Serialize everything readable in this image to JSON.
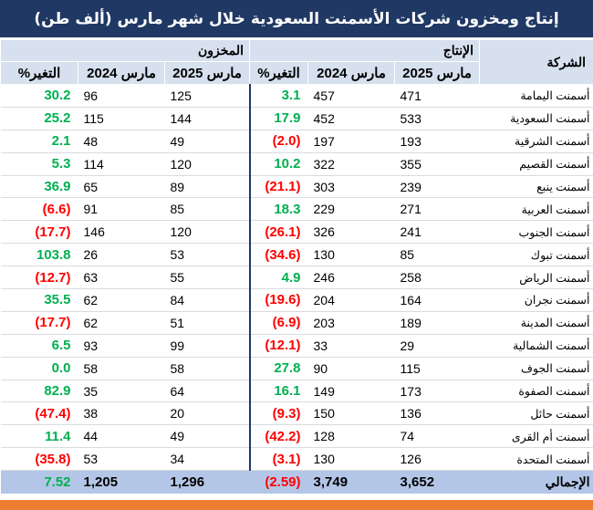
{
  "title": "إنتاج ومخزون شركات الأسمنت السعودية خلال شهر مارس (ألف طن)",
  "headers": {
    "company": "الشركة",
    "production_group": "الإنتاج",
    "inventory_group": "المخزون",
    "mar2025": "مارس 2025",
    "mar2024": "مارس 2024",
    "change": "التغير%"
  },
  "colors": {
    "title_bg": "#1f3864",
    "header_bg": "#d6e0ee",
    "total_bg": "#b4c6e7",
    "positive": "#00b050",
    "negative": "#ff0000",
    "footer": "#ed7d31"
  },
  "rows": [
    {
      "company": "أسمنت اليمامة",
      "prod_2025": "471",
      "prod_2024": "457",
      "prod_change": "3.1",
      "prod_sign": "pos",
      "inv_2025": "125",
      "inv_2024": "96",
      "inv_change": "30.2",
      "inv_sign": "pos"
    },
    {
      "company": "أسمنت السعودية",
      "prod_2025": "533",
      "prod_2024": "452",
      "prod_change": "17.9",
      "prod_sign": "pos",
      "inv_2025": "144",
      "inv_2024": "115",
      "inv_change": "25.2",
      "inv_sign": "pos"
    },
    {
      "company": "أسمنت الشرقية",
      "prod_2025": "193",
      "prod_2024": "197",
      "prod_change": "(2.0)",
      "prod_sign": "neg",
      "inv_2025": "49",
      "inv_2024": "48",
      "inv_change": "2.1",
      "inv_sign": "pos"
    },
    {
      "company": "أسمنت القصيم",
      "prod_2025": "355",
      "prod_2024": "322",
      "prod_change": "10.2",
      "prod_sign": "pos",
      "inv_2025": "120",
      "inv_2024": "114",
      "inv_change": "5.3",
      "inv_sign": "pos"
    },
    {
      "company": "أسمنت ينبع",
      "prod_2025": "239",
      "prod_2024": "303",
      "prod_change": "(21.1)",
      "prod_sign": "neg",
      "inv_2025": "89",
      "inv_2024": "65",
      "inv_change": "36.9",
      "inv_sign": "pos"
    },
    {
      "company": "أسمنت العربية",
      "prod_2025": "271",
      "prod_2024": "229",
      "prod_change": "18.3",
      "prod_sign": "pos",
      "inv_2025": "85",
      "inv_2024": "91",
      "inv_change": "(6.6)",
      "inv_sign": "neg"
    },
    {
      "company": "أسمنت الجنوب",
      "prod_2025": "241",
      "prod_2024": "326",
      "prod_change": "(26.1)",
      "prod_sign": "neg",
      "inv_2025": "120",
      "inv_2024": "146",
      "inv_change": "(17.7)",
      "inv_sign": "neg"
    },
    {
      "company": "أسمنت تبوك",
      "prod_2025": "85",
      "prod_2024": "130",
      "prod_change": "(34.6)",
      "prod_sign": "neg",
      "inv_2025": "53",
      "inv_2024": "26",
      "inv_change": "103.8",
      "inv_sign": "pos"
    },
    {
      "company": "أسمنت الرياض",
      "prod_2025": "258",
      "prod_2024": "246",
      "prod_change": "4.9",
      "prod_sign": "pos",
      "inv_2025": "55",
      "inv_2024": "63",
      "inv_change": "(12.7)",
      "inv_sign": "neg"
    },
    {
      "company": "أسمنت نجران",
      "prod_2025": "164",
      "prod_2024": "204",
      "prod_change": "(19.6)",
      "prod_sign": "neg",
      "inv_2025": "84",
      "inv_2024": "62",
      "inv_change": "35.5",
      "inv_sign": "pos"
    },
    {
      "company": "أسمنت المدينة",
      "prod_2025": "189",
      "prod_2024": "203",
      "prod_change": "(6.9)",
      "prod_sign": "neg",
      "inv_2025": "51",
      "inv_2024": "62",
      "inv_change": "(17.7)",
      "inv_sign": "neg"
    },
    {
      "company": "أسمنت الشمالية",
      "prod_2025": "29",
      "prod_2024": "33",
      "prod_change": "(12.1)",
      "prod_sign": "neg",
      "inv_2025": "99",
      "inv_2024": "93",
      "inv_change": "6.5",
      "inv_sign": "pos"
    },
    {
      "company": "أسمنت الجوف",
      "prod_2025": "115",
      "prod_2024": "90",
      "prod_change": "27.8",
      "prod_sign": "pos",
      "inv_2025": "58",
      "inv_2024": "58",
      "inv_change": "0.0",
      "inv_sign": "pos"
    },
    {
      "company": "أسمنت الصفوة",
      "prod_2025": "173",
      "prod_2024": "149",
      "prod_change": "16.1",
      "prod_sign": "pos",
      "inv_2025": "64",
      "inv_2024": "35",
      "inv_change": "82.9",
      "inv_sign": "pos"
    },
    {
      "company": "أسمنت حائل",
      "prod_2025": "136",
      "prod_2024": "150",
      "prod_change": "(9.3)",
      "prod_sign": "neg",
      "inv_2025": "20",
      "inv_2024": "38",
      "inv_change": "(47.4)",
      "inv_sign": "neg"
    },
    {
      "company": "أسمنت أم القرى",
      "prod_2025": "74",
      "prod_2024": "128",
      "prod_change": "(42.2)",
      "prod_sign": "neg",
      "inv_2025": "49",
      "inv_2024": "44",
      "inv_change": "11.4",
      "inv_sign": "pos"
    },
    {
      "company": "أسمنت المتحدة",
      "prod_2025": "126",
      "prod_2024": "130",
      "prod_change": "(3.1)",
      "prod_sign": "neg",
      "inv_2025": "34",
      "inv_2024": "53",
      "inv_change": "(35.8)",
      "inv_sign": "neg"
    }
  ],
  "total": {
    "label": "الإجمالي",
    "prod_2025": "3,652",
    "prod_2024": "3,749",
    "prod_change": "(2.59)",
    "prod_sign": "neg",
    "inv_2025": "1,296",
    "inv_2024": "1,205",
    "inv_change": "7.52",
    "inv_sign": "pos"
  }
}
